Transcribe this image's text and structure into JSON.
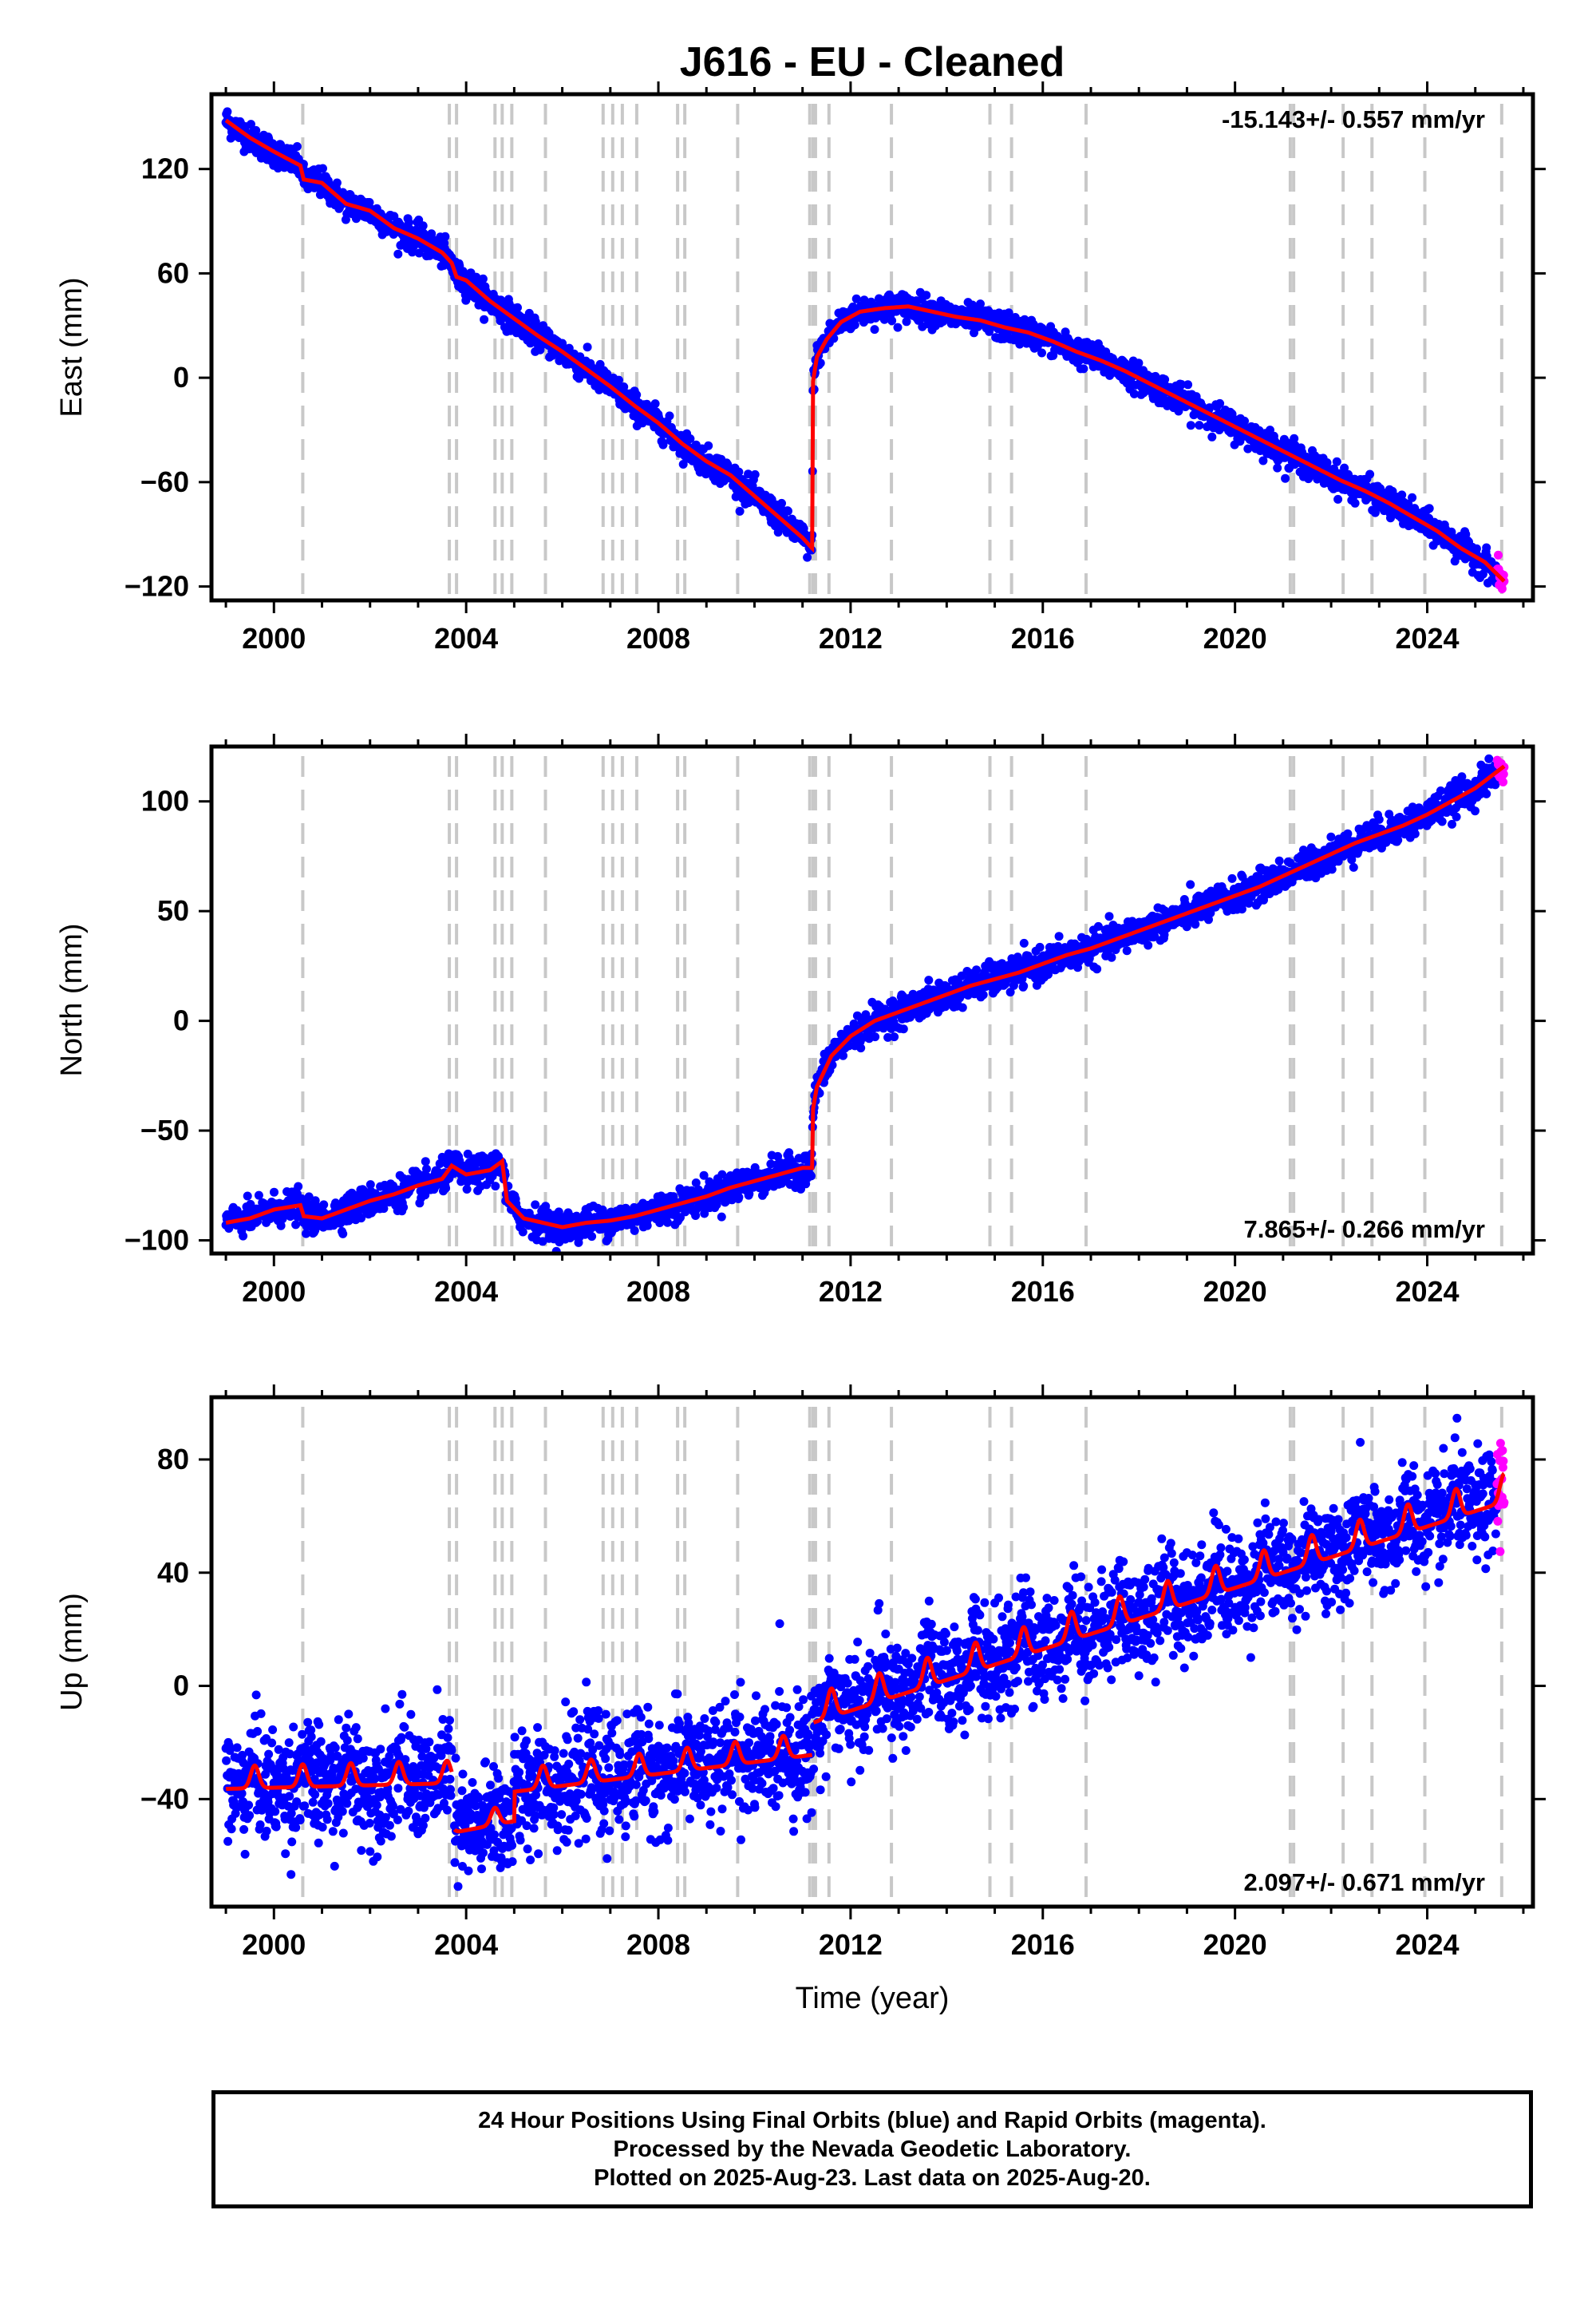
{
  "page": {
    "title": "J616  - EU - Cleaned"
  },
  "colors": {
    "final": "#0000ff",
    "rapid": "#ff00ff",
    "model": "#ff0000",
    "event_line": "#c8c8c8"
  },
  "x_axis": {
    "label": "Time (year)",
    "range": [
      1998.7,
      2026.2
    ],
    "ticks": [
      2000,
      2004,
      2008,
      2012,
      2016,
      2020,
      2024
    ]
  },
  "event_lines": [
    2000.6,
    2003.65,
    2003.8,
    2004.6,
    2004.75,
    2004.95,
    2005.65,
    2006.85,
    2007.05,
    2007.25,
    2007.55,
    2008.4,
    2008.55,
    2009.65,
    2011.15,
    2011.22,
    2011.27,
    2011.55,
    2012.85,
    2014.9,
    2015.35,
    2016.9,
    2021.15,
    2021.22,
    2022.25,
    2022.85,
    2023.95,
    2025.55
  ],
  "chart_data": [
    {
      "type": "scatter",
      "name": "east",
      "ylabel": "East (mm)",
      "ylim": [
        -128,
        163
      ],
      "yticks": [
        120,
        60,
        0,
        -60,
        -120
      ],
      "rate_text": "-15.143+/- 0.557 mm/yr",
      "rate_position": "top-right",
      "model": {
        "x": [
          1999.0,
          1999.5,
          2000.0,
          2000.55,
          2000.62,
          2001.0,
          2001.5,
          2002.0,
          2002.5,
          2003.0,
          2003.5,
          2003.7,
          2003.8,
          2004.0,
          2004.5,
          2005.0,
          2005.5,
          2006.0,
          2006.5,
          2007.0,
          2007.5,
          2008.0,
          2008.5,
          2009.0,
          2009.5,
          2010.0,
          2010.5,
          2011.0,
          2011.2,
          2011.22,
          2011.3,
          2011.5,
          2011.8,
          2012.2,
          2012.7,
          2013.2,
          2013.7,
          2014.2,
          2014.7,
          2015.2,
          2015.7,
          2016.2,
          2016.7,
          2017.2,
          2017.7,
          2018.2,
          2018.7,
          2019.2,
          2019.7,
          2020.2,
          2020.7,
          2021.2,
          2021.7,
          2022.2,
          2022.7,
          2023.2,
          2023.7,
          2024.2,
          2024.7,
          2025.2,
          2025.6
        ],
        "y": [
          148,
          138,
          130,
          122,
          114,
          112,
          100,
          96,
          86,
          80,
          72,
          66,
          58,
          56,
          44,
          34,
          24,
          15,
          5,
          -5,
          -16,
          -26,
          -38,
          -48,
          -56,
          -68,
          -80,
          -92,
          -98,
          -2,
          12,
          22,
          32,
          38,
          40,
          41,
          38,
          35,
          33,
          29,
          26,
          21,
          15,
          10,
          4,
          -3,
          -10,
          -17,
          -24,
          -31,
          -38,
          -45,
          -52,
          -59,
          -65,
          -72,
          -80,
          -88,
          -98,
          -106,
          -117
        ]
      },
      "scatter": {
        "spread": 4,
        "count": 2600
      }
    },
    {
      "type": "scatter",
      "name": "north",
      "ylabel": "North (mm)",
      "ylim": [
        -106,
        125
      ],
      "yticks": [
        100,
        50,
        0,
        -50,
        -100
      ],
      "rate_text": "7.865+/- 0.266 mm/yr",
      "rate_position": "bottom-right",
      "model": {
        "x": [
          1999.0,
          1999.5,
          2000.0,
          2000.55,
          2000.62,
          2001.0,
          2001.5,
          2002.0,
          2002.5,
          2003.0,
          2003.5,
          2003.7,
          2004.0,
          2004.5,
          2004.75,
          2004.85,
          2005.2,
          2005.6,
          2006.0,
          2006.5,
          2007.0,
          2007.5,
          2008.0,
          2008.5,
          2009.0,
          2009.5,
          2010.0,
          2010.5,
          2011.0,
          2011.2,
          2011.22,
          2011.3,
          2011.6,
          2012.0,
          2012.5,
          2013.0,
          2013.5,
          2014.0,
          2014.5,
          2015.0,
          2015.5,
          2016.0,
          2016.5,
          2017.0,
          2017.5,
          2018.0,
          2018.5,
          2019.0,
          2019.5,
          2020.0,
          2020.5,
          2021.0,
          2021.5,
          2022.0,
          2022.5,
          2023.0,
          2023.5,
          2024.0,
          2024.5,
          2025.0,
          2025.6
        ],
        "y": [
          -92,
          -90,
          -86,
          -84,
          -89,
          -90,
          -86,
          -82,
          -79,
          -75,
          -72,
          -66,
          -70,
          -68,
          -64,
          -82,
          -90,
          -92,
          -94,
          -92,
          -91,
          -89,
          -86,
          -83,
          -80,
          -76,
          -73,
          -70,
          -67,
          -67,
          -40,
          -30,
          -16,
          -7,
          0,
          4,
          8,
          12,
          16,
          19,
          22,
          26,
          30,
          33,
          37,
          41,
          45,
          49,
          53,
          57,
          61,
          66,
          71,
          76,
          81,
          85,
          89,
          94,
          100,
          106,
          116
        ]
      },
      "scatter": {
        "spread": 3.5,
        "count": 2600
      }
    },
    {
      "type": "scatter",
      "name": "up",
      "ylabel": "Up (mm)",
      "ylim": [
        -78,
        102
      ],
      "yticks": [
        80,
        40,
        0,
        -40
      ],
      "rate_text": "2.097+/- 0.671 mm/yr",
      "rate_position": "bottom-right",
      "model": {
        "type": "annual",
        "segments": [
          {
            "x0": 1999.0,
            "x1": 2003.7,
            "base0": -34,
            "base1": -32,
            "amp": 4
          },
          {
            "x0": 2003.75,
            "x1": 2005.0,
            "base0": -50,
            "base1": -46,
            "amp": 3
          },
          {
            "x0": 2005.0,
            "x1": 2011.2,
            "base0": -35,
            "base1": -22,
            "amp": 4
          },
          {
            "x0": 2011.22,
            "x1": 2025.6,
            "base0": -10,
            "base1": 68,
            "amp": 5
          }
        ]
      },
      "scatter": {
        "spread": 9,
        "count": 3200
      }
    }
  ],
  "footer": {
    "line1": "24 Hour Positions Using Final Orbits (blue) and Rapid Orbits (magenta).",
    "line2": "Processed by the Nevada Geodetic Laboratory.",
    "line3": "Plotted on 2025-Aug-23. Last data on 2025-Aug-20."
  }
}
